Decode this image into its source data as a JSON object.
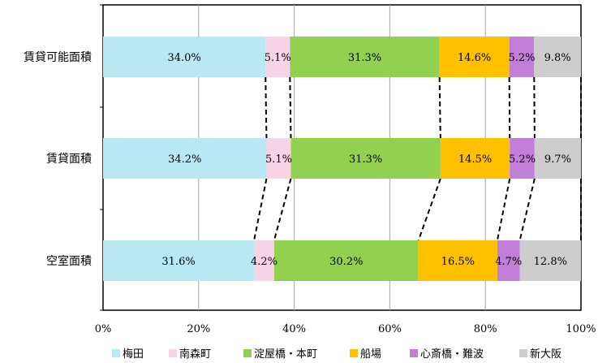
{
  "chart_data": {
    "type": "bar",
    "stacked": true,
    "orientation": "horizontal",
    "percent": true,
    "categories": [
      "賃貸可能面積",
      "賃貸面積",
      "空室面積"
    ],
    "series": [
      {
        "name": "梅田",
        "color": "#B7E8F4",
        "values": [
          34.0,
          34.2,
          31.6
        ],
        "labels": [
          "34.0%",
          "34.2%",
          "31.6%"
        ]
      },
      {
        "name": "南森町",
        "color": "#F8D3E6",
        "values": [
          5.1,
          5.1,
          4.2
        ],
        "labels": [
          "5.1%",
          "5.1%",
          "4.2%"
        ]
      },
      {
        "name": "淀屋橋・本町",
        "color": "#92D050",
        "values": [
          31.3,
          31.3,
          30.2
        ],
        "labels": [
          "31.3%",
          "31.3%",
          "30.2%"
        ]
      },
      {
        "name": "船場",
        "color": "#FFC000",
        "values": [
          14.6,
          14.5,
          16.5
        ],
        "labels": [
          "14.6%",
          "14.5%",
          "16.5%"
        ]
      },
      {
        "name": "心斎橋・難波",
        "color": "#C27FD9",
        "values": [
          5.2,
          5.2,
          4.7
        ],
        "labels": [
          "5.2%",
          "5.2%",
          "4.7%"
        ]
      },
      {
        "name": "新大阪",
        "color": "#CDCDCD",
        "values": [
          9.8,
          9.7,
          12.8
        ],
        "labels": [
          "9.8%",
          "9.7%",
          "12.8%"
        ]
      }
    ],
    "x_ticks": [
      "0%",
      "20%",
      "40%",
      "60%",
      "80%",
      "100%"
    ],
    "xlim": [
      0,
      100
    ],
    "grid": true,
    "series_connectors": "dashed",
    "legend_position": "bottom"
  }
}
